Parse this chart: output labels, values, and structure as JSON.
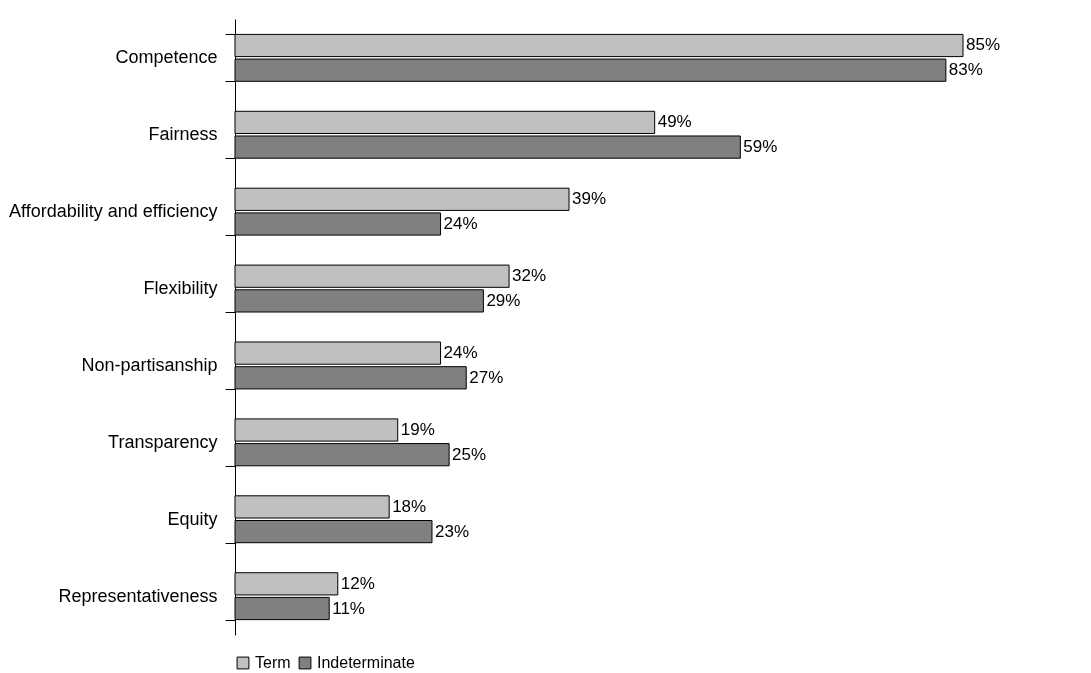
{
  "chart_data": {
    "type": "bar",
    "orientation": "horizontal",
    "legend": "bottom",
    "categories": [
      "Competence",
      "Fairness",
      "Affordability and efficiency",
      "Flexibility",
      "Non-partisanship",
      "Transparency",
      "Equity",
      "Representativeness"
    ],
    "series": [
      {
        "name": "Term",
        "color": "#c0c0c0",
        "values": [
          85,
          49,
          39,
          32,
          24,
          19,
          18,
          12
        ],
        "value_labels": [
          "85%",
          "49%",
          "39%",
          "32%",
          "24%",
          "19%",
          "18%",
          "12%"
        ]
      },
      {
        "name": "Indeterminate",
        "color": "#808080",
        "values": [
          83,
          59,
          24,
          29,
          27,
          25,
          23,
          11
        ],
        "value_labels": [
          "83%",
          "59%",
          "24%",
          "29%",
          "27%",
          "25%",
          "23%",
          "11%"
        ]
      }
    ]
  }
}
